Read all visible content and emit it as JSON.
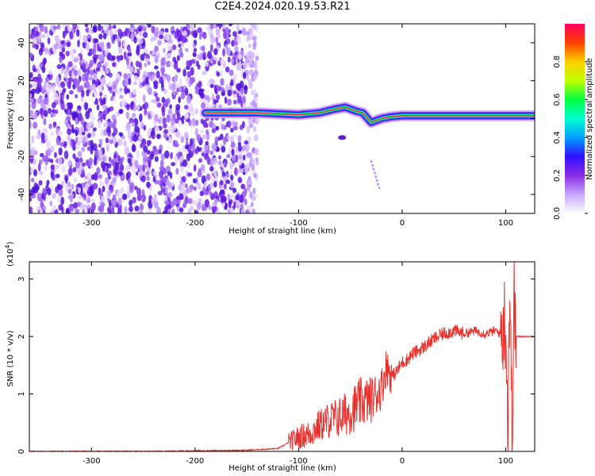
{
  "title": "C2E4.2024.020.19.53.R21",
  "chart_data": [
    {
      "type": "heatmap",
      "xlabel": "Height of straight line (km)",
      "ylabel": "Frequency (Hz)",
      "xlim": [
        -360,
        128
      ],
      "ylim": [
        -50,
        50
      ],
      "xticks": [
        -300,
        -200,
        -100,
        0,
        100
      ],
      "yticks": [
        -40,
        -20,
        0,
        20,
        40
      ],
      "colorbar": {
        "label": "Normalized spectral amplitude",
        "range": [
          0,
          1
        ],
        "ticks": [
          0.0,
          0.2,
          0.4,
          0.6,
          0.8
        ],
        "colormap": [
          "#ffffff",
          "#c8a8ff",
          "#8a2be2",
          "#3010ff",
          "#00a0ff",
          "#00ffd0",
          "#00ff40",
          "#c0ff00",
          "#ffd000",
          "#ff4000",
          "#ff0060"
        ]
      },
      "features": {
        "noise_region_x": [
          -360,
          -140
        ],
        "main_band": [
          [
            -190,
            3
          ],
          [
            -140,
            3
          ],
          [
            -120,
            2.5
          ],
          [
            -100,
            2
          ],
          [
            -80,
            3
          ],
          [
            -65,
            5
          ],
          [
            -55,
            6
          ],
          [
            -45,
            4
          ],
          [
            -38,
            3
          ],
          [
            -30,
            -2
          ],
          [
            -20,
            0
          ],
          [
            -10,
            1
          ],
          [
            0,
            1.5
          ],
          [
            20,
            1.5
          ],
          [
            50,
            1.5
          ],
          [
            80,
            1.5
          ],
          [
            100,
            1.5
          ],
          [
            128,
            1.5
          ]
        ],
        "side_streak": [
          [
            -30,
            -22
          ],
          [
            -22,
            -37
          ]
        ]
      }
    },
    {
      "type": "line",
      "xlabel": "Height of straight line (km)",
      "ylabel": "SNR (10 * v/v)",
      "y_multiplier": "(x10",
      "y_multiplier_exp": "4",
      "y_multiplier_close": ")",
      "xlim": [
        -360,
        128
      ],
      "ylim": [
        0,
        3.3
      ],
      "xticks": [
        -300,
        -200,
        -100,
        0,
        100
      ],
      "yticks": [
        0,
        1,
        2,
        3
      ],
      "series": [
        {
          "color": "#e8302c",
          "x": [
            -360,
            -300,
            -250,
            -200,
            -150,
            -120,
            -110,
            -100,
            -90,
            -80,
            -70,
            -60,
            -50,
            -40,
            -30,
            -20,
            -15,
            -10,
            -5,
            0,
            5,
            10,
            20,
            30,
            40,
            50,
            60,
            70,
            80,
            90,
            95,
            100,
            102,
            104,
            106,
            108,
            110,
            115,
            120,
            128
          ],
          "y": [
            0.0,
            0.0,
            0.0,
            0.01,
            0.02,
            0.05,
            0.15,
            0.25,
            0.3,
            0.45,
            0.55,
            0.6,
            0.7,
            0.85,
            0.9,
            1.1,
            1.5,
            1.3,
            1.4,
            1.55,
            1.6,
            1.7,
            1.8,
            1.95,
            2.05,
            2.1,
            2.05,
            2.1,
            2.05,
            2.1,
            2.05,
            2.3,
            0.5,
            2.9,
            0.3,
            2.6,
            2.0,
            2.0,
            2.0,
            2.0
          ]
        }
      ]
    }
  ]
}
